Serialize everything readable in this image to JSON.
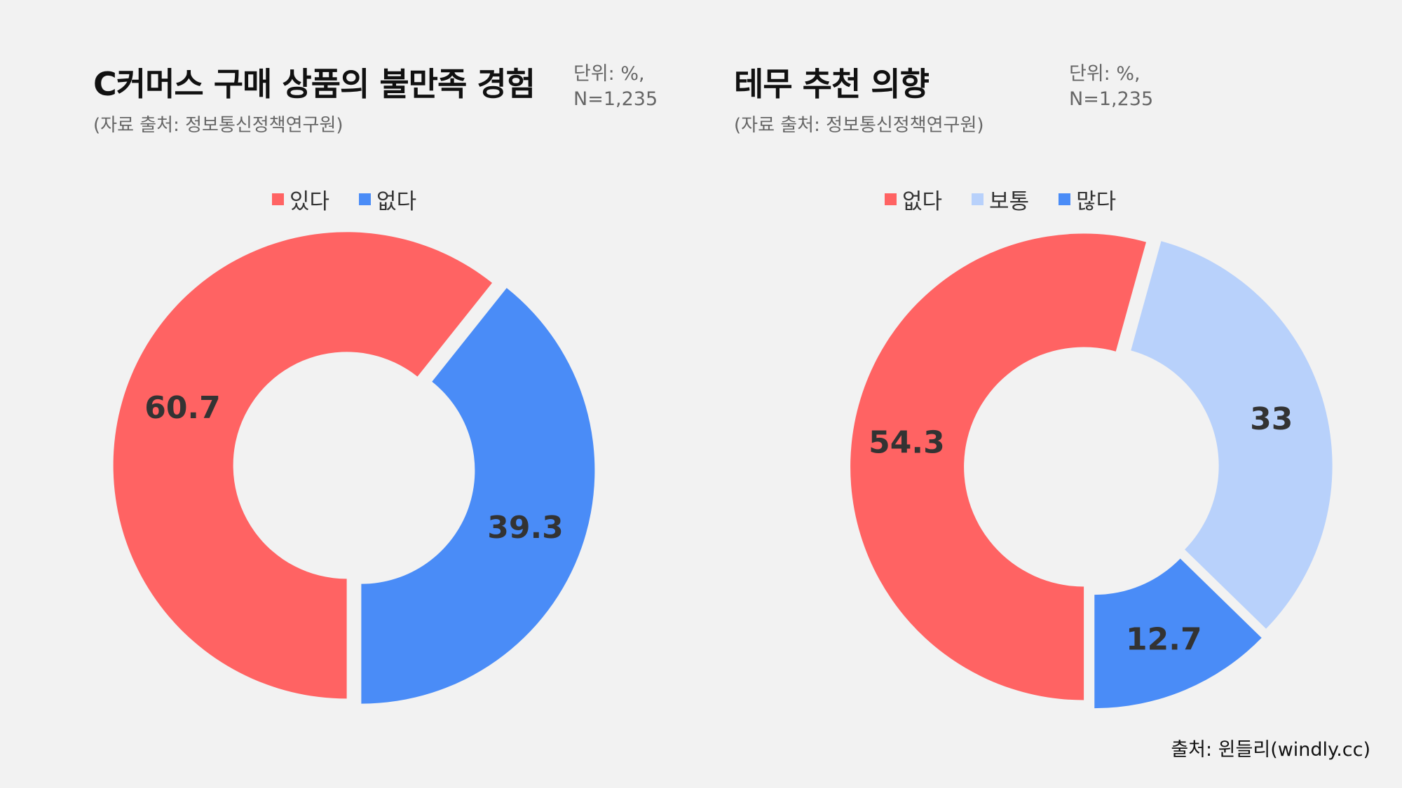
{
  "footer": "출처: 윈들리(windly.cc)",
  "charts": [
    {
      "title": "C커머스 구매 상품의 불만족 경험",
      "unit": "단위: %,\nN=1,235",
      "source": "(자료 출처: 정보통신정책연구원)"
    },
    {
      "title": "테무 추천 의향",
      "unit": "단위: %,\nN=1,235",
      "source": "(자료 출처: 정보통신정책연구원)"
    }
  ],
  "chart_data": [
    {
      "type": "pie",
      "title": "C커머스 구매 상품의 불만족 경험",
      "unit": "%",
      "start": "bottom",
      "direction": "clockwise",
      "donut": true,
      "categories": [
        "있다",
        "없다"
      ],
      "values": [
        60.7,
        39.3
      ],
      "labels": [
        "60.7",
        "39.3"
      ],
      "colors": [
        "#ff6363",
        "#4a8cf7"
      ],
      "legend": "top"
    },
    {
      "type": "pie",
      "title": "테무 추천 의향",
      "unit": "%",
      "start": "bottom",
      "direction": "clockwise",
      "donut": true,
      "categories": [
        "없다",
        "보통",
        "많다"
      ],
      "values": [
        54.3,
        33,
        12.7
      ],
      "labels": [
        "54.3",
        "33",
        "12.7"
      ],
      "colors": [
        "#ff6363",
        "#b8d1fb",
        "#4a8cf7"
      ],
      "legend": "top"
    }
  ]
}
